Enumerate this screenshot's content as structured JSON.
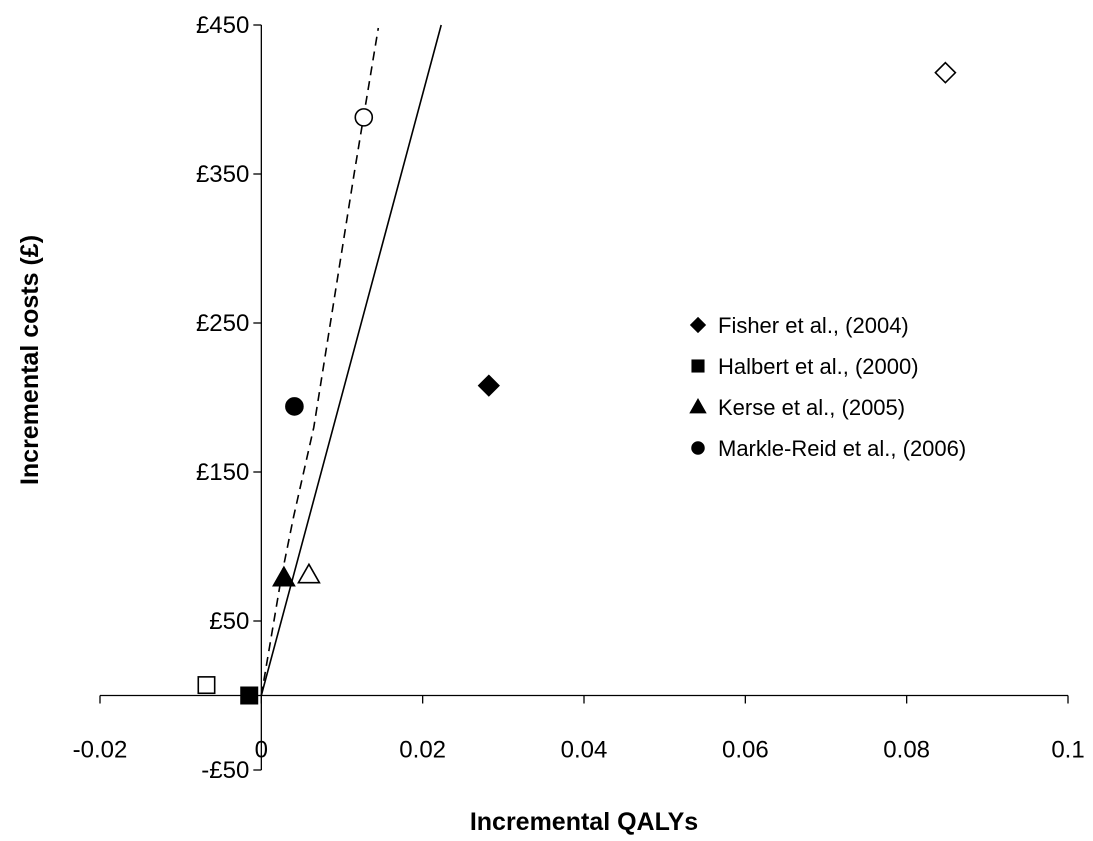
{
  "chart_data": {
    "type": "scatter",
    "xlabel": "Incremental QALYs",
    "ylabel": "Incremental costs (£)",
    "xlim": [
      -0.02,
      0.1
    ],
    "ylim": [
      -50,
      450
    ],
    "x_ticks": [
      {
        "value": -0.02,
        "label": "-0.02"
      },
      {
        "value": 0,
        "label": "0"
      },
      {
        "value": 0.02,
        "label": "0.02"
      },
      {
        "value": 0.04,
        "label": "0.04"
      },
      {
        "value": 0.06,
        "label": "0.06"
      },
      {
        "value": 0.08,
        "label": "0.08"
      },
      {
        "value": 0.1,
        "label": "0.1"
      }
    ],
    "y_ticks": [
      {
        "value": 450,
        "label": "£450"
      },
      {
        "value": 350,
        "label": "£350"
      },
      {
        "value": 250,
        "label": "£250"
      },
      {
        "value": 150,
        "label": "£150"
      },
      {
        "value": 50,
        "label": "£50"
      },
      {
        "value": -50,
        "label": "-£50"
      }
    ],
    "legend_position": "right",
    "series": [
      {
        "name": "Fisher et al., (2004)",
        "marker": "diamond",
        "points": [
          {
            "x": 0.0282,
            "y": 208,
            "filled": true
          },
          {
            "x": 0.0848,
            "y": 418,
            "filled": false
          }
        ]
      },
      {
        "name": "Halbert et al., (2000)",
        "marker": "square",
        "points": [
          {
            "x": -0.0015,
            "y": 0,
            "filled": true
          },
          {
            "x": -0.0068,
            "y": 7,
            "filled": false
          }
        ]
      },
      {
        "name": "Kerse et al., (2005)",
        "marker": "triangle",
        "points": [
          {
            "x": 0.0028,
            "y": 79,
            "filled": true
          },
          {
            "x": 0.0059,
            "y": 81,
            "filled": false
          }
        ]
      },
      {
        "name": "Markle-Reid et al., (2006)",
        "marker": "circle",
        "points": [
          {
            "x": 0.0041,
            "y": 194,
            "filled": true
          },
          {
            "x": 0.0127,
            "y": 388,
            "filled": false
          }
        ]
      }
    ],
    "lines": [
      {
        "style": "solid",
        "points": [
          [
            0,
            0
          ],
          [
            0.0223,
            450
          ]
        ]
      },
      {
        "style": "dashed",
        "points": [
          [
            0,
            0
          ],
          [
            0.0025,
            80
          ],
          [
            0.004,
            120
          ],
          [
            0.0065,
            180
          ],
          [
            0.0115,
            350
          ],
          [
            0.0145,
            448
          ]
        ]
      }
    ]
  }
}
